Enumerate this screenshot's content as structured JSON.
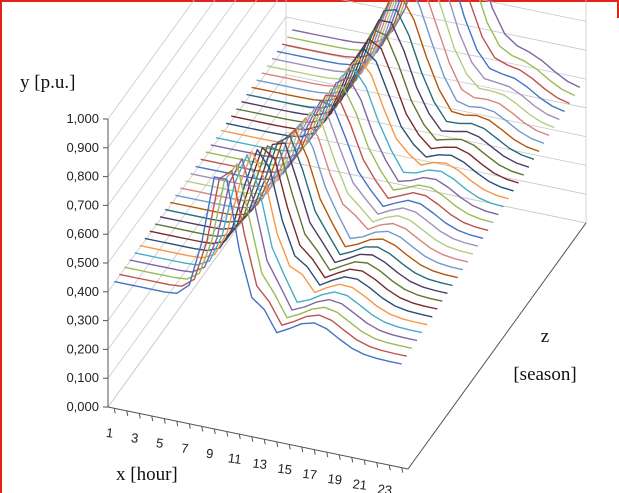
{
  "chart_data": {
    "type": "line",
    "subtype": "3d-line",
    "ylabel": "y [p.u.]",
    "xlabel": "x [hour]",
    "zlabel_line1": "z",
    "zlabel_line2": "[season]",
    "y_ticks": [
      "1,000",
      "0,900",
      "0,800",
      "0,700",
      "0,600",
      "0,500",
      "0,400",
      "0,300",
      "0,200",
      "0,100",
      "0,000"
    ],
    "x_ticks": [
      "1",
      "3",
      "5",
      "7",
      "9",
      "11",
      "13",
      "15",
      "17",
      "19",
      "21",
      "23"
    ],
    "ylim": [
      0,
      1
    ],
    "series_count": 36,
    "hours": 24,
    "grid": true,
    "border_color": "#e2231a"
  }
}
